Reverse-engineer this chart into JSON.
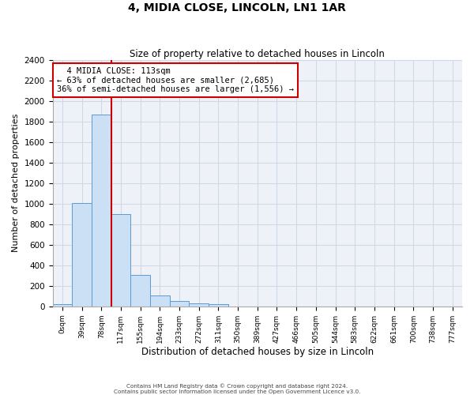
{
  "title": "4, MIDIA CLOSE, LINCOLN, LN1 1AR",
  "subtitle": "Size of property relative to detached houses in Lincoln",
  "xlabel": "Distribution of detached houses by size in Lincoln",
  "ylabel": "Number of detached properties",
  "bar_color": "#cce0f5",
  "bar_edge_color": "#5b9bd5",
  "categories": [
    "0sqm",
    "39sqm",
    "78sqm",
    "117sqm",
    "155sqm",
    "194sqm",
    "233sqm",
    "272sqm",
    "311sqm",
    "350sqm",
    "389sqm",
    "427sqm",
    "466sqm",
    "505sqm",
    "544sqm",
    "583sqm",
    "622sqm",
    "661sqm",
    "700sqm",
    "738sqm",
    "777sqm"
  ],
  "values": [
    20,
    1005,
    1870,
    900,
    305,
    105,
    50,
    30,
    20,
    0,
    0,
    0,
    0,
    0,
    0,
    0,
    0,
    0,
    0,
    0,
    0
  ],
  "ylim": [
    0,
    2400
  ],
  "yticks": [
    0,
    200,
    400,
    600,
    800,
    1000,
    1200,
    1400,
    1600,
    1800,
    2000,
    2200,
    2400
  ],
  "property_name": "4 MIDIA CLOSE: 113sqm",
  "pct_smaller": 63,
  "n_smaller": 2685,
  "pct_larger_semi": 36,
  "n_larger_semi": 1556,
  "vline_x_index": 2,
  "annotation_box_color": "#ffffff",
  "annotation_border_color": "#cc0000",
  "grid_color": "#d0d8e8",
  "background_color": "#eef2f8",
  "footer_line1": "Contains HM Land Registry data © Crown copyright and database right 2024.",
  "footer_line2": "Contains public sector information licensed under the Open Government Licence v3.0."
}
